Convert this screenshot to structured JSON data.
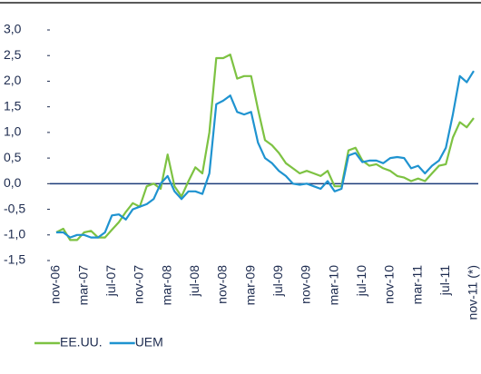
{
  "chart_data": {
    "type": "line",
    "categories": [
      "nov-06",
      null,
      null,
      null,
      "mar-07",
      null,
      null,
      null,
      "jul-07",
      null,
      null,
      null,
      "nov-07",
      null,
      null,
      null,
      "mar-08",
      null,
      null,
      null,
      "jul-08",
      null,
      null,
      null,
      "nov-08",
      null,
      null,
      null,
      "mar-09",
      null,
      null,
      null,
      "jul-09",
      null,
      null,
      null,
      "nov-09",
      null,
      null,
      null,
      "mar-10",
      null,
      null,
      null,
      "jul-10",
      null,
      null,
      null,
      "nov-10",
      null,
      null,
      null,
      "mar-11",
      null,
      null,
      null,
      "jul-11",
      null,
      null,
      null,
      "nov-11 (*)"
    ],
    "series": [
      {
        "name": "EE.UU.",
        "color": "#7dc242",
        "values": [
          -0.95,
          -0.88,
          -1.1,
          -1.1,
          -0.95,
          -0.92,
          -1.05,
          -1.05,
          -0.9,
          -0.75,
          -0.55,
          -0.38,
          -0.45,
          -0.05,
          0.0,
          -0.1,
          0.57,
          -0.05,
          -0.25,
          0.05,
          0.32,
          0.2,
          1.0,
          2.45,
          2.45,
          2.52,
          2.05,
          2.1,
          2.1,
          1.45,
          0.85,
          0.75,
          0.6,
          0.4,
          0.3,
          0.2,
          0.25,
          0.2,
          0.15,
          0.25,
          -0.05,
          -0.05,
          0.65,
          0.7,
          0.45,
          0.35,
          0.38,
          0.3,
          0.25,
          0.15,
          0.12,
          0.05,
          0.1,
          0.05,
          0.2,
          0.35,
          0.38,
          0.9,
          1.2,
          1.1,
          1.28
        ]
      },
      {
        "name": "UEM",
        "color": "#1f93d0",
        "values": [
          -0.95,
          -0.95,
          -1.05,
          -1.0,
          -1.0,
          -1.05,
          -1.05,
          -0.95,
          -0.62,
          -0.6,
          -0.7,
          -0.5,
          -0.45,
          -0.4,
          -0.3,
          0.0,
          0.15,
          -0.15,
          -0.3,
          -0.15,
          -0.15,
          -0.2,
          0.2,
          1.55,
          1.62,
          1.72,
          1.4,
          1.35,
          1.4,
          0.8,
          0.5,
          0.4,
          0.25,
          0.15,
          0.0,
          -0.02,
          0.0,
          -0.05,
          -0.1,
          0.05,
          -0.15,
          -0.1,
          0.55,
          0.6,
          0.42,
          0.45,
          0.45,
          0.4,
          0.5,
          0.52,
          0.5,
          0.3,
          0.35,
          0.2,
          0.35,
          0.45,
          0.7,
          1.35,
          2.1,
          1.98,
          2.2
        ]
      }
    ],
    "ylim": [
      -1.5,
      3.0
    ],
    "yticks": [
      {
        "value": -1.5,
        "label": "-1,5"
      },
      {
        "value": -1.0,
        "label": "-1,0"
      },
      {
        "value": -0.5,
        "label": "-0,5"
      },
      {
        "value": 0.0,
        "label": "0,0"
      },
      {
        "value": 0.5,
        "label": "0,5"
      },
      {
        "value": 1.0,
        "label": "1,0"
      },
      {
        "value": 1.5,
        "label": "1,5"
      },
      {
        "value": 2.0,
        "label": "2,0"
      },
      {
        "value": 2.5,
        "label": "2,5"
      },
      {
        "value": 3.0,
        "label": "3,0"
      }
    ],
    "grid": false,
    "legend": "bottom"
  }
}
